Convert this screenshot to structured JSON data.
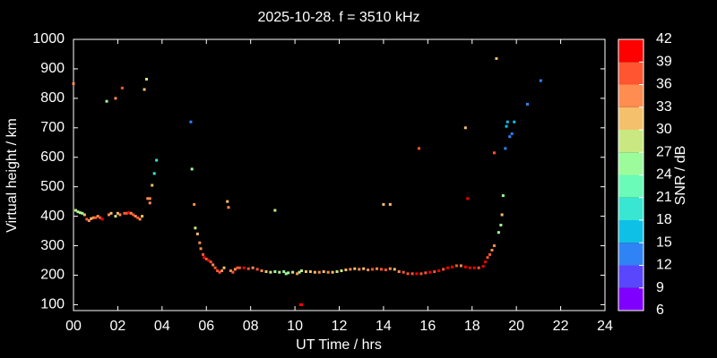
{
  "chart_data": {
    "type": "scatter",
    "title": "2025-10-28. f = 3510 kHz",
    "x_label": "UT Time / hrs",
    "y_label": "Virtual height / km",
    "xlim": [
      0,
      24
    ],
    "xticks": [
      {
        "value": 0,
        "label": "00"
      },
      {
        "value": 2,
        "label": "02"
      },
      {
        "value": 4,
        "label": "04"
      },
      {
        "value": 6,
        "label": "06"
      },
      {
        "value": 8,
        "label": "08"
      },
      10,
      12,
      14,
      16,
      18,
      20,
      22,
      24
    ],
    "ylim": [
      80,
      1000
    ],
    "yticks": [
      100,
      200,
      300,
      400,
      500,
      600,
      700,
      800,
      900,
      1000
    ],
    "x": [
      0,
      0.1,
      0.2,
      0.3,
      0.4,
      0.5,
      0.6,
      0.7,
      0.8,
      0.9,
      1.0,
      1.1,
      1.2,
      1.3,
      1.5,
      1.6,
      1.7,
      1.9,
      1.9,
      2.0,
      2.1,
      2.2,
      2.3,
      2.4,
      2.5,
      2.6,
      2.7,
      2.8,
      2.9,
      3.0,
      3.1,
      3.2,
      3.3,
      3.35,
      3.45,
      3.45,
      3.55,
      3.65,
      3.75,
      5.3,
      5.35,
      5.45,
      5.5,
      5.6,
      5.7,
      5.75,
      5.85,
      5.9,
      6.0,
      6.1,
      6.2,
      6.3,
      6.4,
      6.5,
      6.6,
      6.7,
      6.8,
      6.95,
      7.0,
      7.1,
      7.2,
      7.3,
      7.4,
      7.5,
      7.7,
      7.9,
      8.1,
      8.3,
      8.5,
      8.7,
      8.9,
      9.1,
      9.3,
      9.5,
      9.7,
      9.9,
      10.1,
      10.3,
      10.5,
      10.7,
      10.9,
      11.1,
      11.3,
      11.5,
      11.7,
      11.9,
      12.1,
      12.3,
      12.5,
      12.7,
      12.9,
      13.1,
      13.3,
      13.5,
      13.7,
      13.9,
      14.1,
      14.3,
      14.5,
      14.7,
      14.9,
      15.1,
      15.3,
      15.5,
      15.7,
      15.9,
      16.1,
      16.3,
      16.5,
      16.7,
      16.9,
      17.1,
      17.3,
      17.5,
      17.7,
      17.9,
      18.1,
      18.3,
      9.1,
      9.6,
      10.2,
      10.25,
      10.3,
      14.0,
      14.3,
      15.6,
      17.7,
      17.8,
      18.5,
      18.6,
      18.7,
      18.8,
      18.9,
      19.0,
      19.0,
      19.1,
      19.2,
      19.3,
      19.35,
      19.4,
      19.5,
      19.55,
      19.6,
      19.7,
      19.8,
      19.9,
      20.5,
      21.1
    ],
    "values": [
      850,
      420,
      415,
      412,
      410,
      405,
      390,
      385,
      392,
      395,
      395,
      400,
      395,
      390,
      790,
      405,
      410,
      800,
      400,
      410,
      405,
      835,
      410,
      410,
      412,
      410,
      405,
      400,
      395,
      390,
      400,
      830,
      865,
      460,
      460,
      445,
      505,
      545,
      590,
      720,
      560,
      440,
      360,
      340,
      310,
      290,
      270,
      260,
      255,
      250,
      245,
      235,
      225,
      215,
      210,
      215,
      225,
      450,
      430,
      215,
      210,
      220,
      225,
      225,
      225,
      222,
      225,
      220,
      215,
      212,
      210,
      212,
      210,
      212,
      208,
      210,
      205,
      215,
      212,
      212,
      210,
      210,
      212,
      210,
      210,
      212,
      215,
      218,
      220,
      222,
      220,
      222,
      218,
      220,
      222,
      220,
      218,
      222,
      220,
      212,
      210,
      205,
      205,
      205,
      205,
      208,
      210,
      212,
      215,
      220,
      225,
      228,
      232,
      232,
      228,
      225,
      225,
      225,
      420,
      205,
      210,
      100,
      100,
      440,
      440,
      630,
      700,
      460,
      230,
      245,
      260,
      270,
      285,
      300,
      615,
      935,
      345,
      370,
      405,
      470,
      630,
      705,
      720,
      670,
      680,
      720,
      780,
      860
    ],
    "snr": [
      33,
      27,
      24,
      27,
      24,
      30,
      36,
      33,
      30,
      33,
      36,
      33,
      36,
      39,
      24,
      33,
      30,
      33,
      27,
      30,
      33,
      36,
      36,
      36,
      39,
      33,
      36,
      33,
      36,
      33,
      30,
      30,
      27,
      33,
      33,
      33,
      30,
      18,
      18,
      12,
      24,
      33,
      27,
      30,
      33,
      33,
      36,
      39,
      36,
      39,
      36,
      33,
      36,
      36,
      36,
      33,
      30,
      30,
      33,
      33,
      36,
      33,
      36,
      36,
      39,
      36,
      33,
      36,
      33,
      30,
      27,
      24,
      27,
      24,
      24,
      27,
      33,
      27,
      30,
      30,
      30,
      33,
      30,
      33,
      30,
      27,
      27,
      30,
      33,
      30,
      33,
      30,
      33,
      36,
      33,
      36,
      36,
      33,
      30,
      33,
      36,
      36,
      36,
      39,
      36,
      36,
      39,
      36,
      39,
      36,
      39,
      39,
      36,
      33,
      39,
      39,
      39,
      36,
      27,
      24,
      24,
      39,
      39,
      30,
      30,
      36,
      30,
      39,
      39,
      39,
      36,
      36,
      33,
      33,
      36,
      30,
      24,
      24,
      30,
      24,
      12,
      15,
      15,
      12,
      12,
      15,
      12,
      12
    ],
    "colorbar": {
      "label": "SNR / dB",
      "ticks": [
        6,
        9,
        12,
        15,
        18,
        21,
        24,
        27,
        30,
        33,
        36,
        39,
        42
      ],
      "colors": [
        "#8000ff",
        "#5a46fc",
        "#2f83f5",
        "#0fc0e6",
        "#38e6d2",
        "#6afbb8",
        "#9cfc9c",
        "#c9e882",
        "#f4c06c",
        "#ff8c50",
        "#ff5530",
        "#ff0000"
      ]
    }
  }
}
